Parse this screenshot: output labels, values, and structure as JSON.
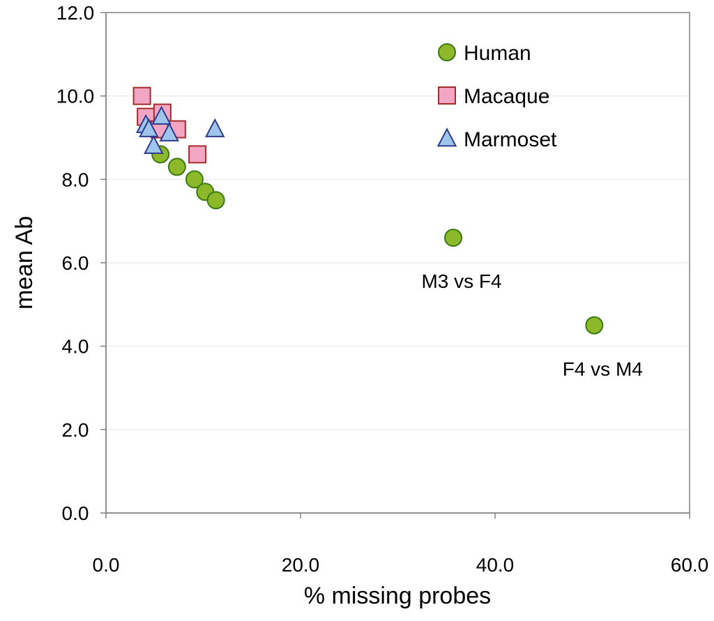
{
  "chart_data": {
    "type": "scatter",
    "title": "",
    "xlabel": "% missing probes",
    "ylabel": "mean Ab",
    "xlim": [
      0,
      60
    ],
    "ylim": [
      0,
      12
    ],
    "xticks": [
      "0.0",
      "20.0",
      "40.0",
      "60.0"
    ],
    "yticks": [
      "0.0",
      "2.0",
      "4.0",
      "6.0",
      "8.0",
      "10.0",
      "12.0"
    ],
    "grid": "horizontal",
    "legend_position": "top-right",
    "series": [
      {
        "name": "Human",
        "marker": "circle",
        "color": "#8cb82a",
        "edge": "#3a7a12",
        "points": [
          {
            "x": 5.6,
            "y": 8.6
          },
          {
            "x": 7.3,
            "y": 8.3
          },
          {
            "x": 9.1,
            "y": 8.0
          },
          {
            "x": 10.2,
            "y": 7.7
          },
          {
            "x": 11.3,
            "y": 7.5
          },
          {
            "x": 35.7,
            "y": 6.6
          },
          {
            "x": 50.2,
            "y": 4.5
          }
        ]
      },
      {
        "name": "Macaque",
        "marker": "square",
        "color": "#f3a6c4",
        "edge": "#a52a2a",
        "points": [
          {
            "x": 3.7,
            "y": 10.0
          },
          {
            "x": 4.1,
            "y": 9.5
          },
          {
            "x": 5.8,
            "y": 9.6
          },
          {
            "x": 5.5,
            "y": 9.2
          },
          {
            "x": 7.3,
            "y": 9.2
          },
          {
            "x": 9.4,
            "y": 8.6
          }
        ]
      },
      {
        "name": "Marmoset",
        "marker": "triangle",
        "color": "#9fc6ea",
        "edge": "#2e3a8c",
        "points": [
          {
            "x": 4.1,
            "y": 9.3
          },
          {
            "x": 4.4,
            "y": 9.2
          },
          {
            "x": 5.7,
            "y": 9.5
          },
          {
            "x": 6.5,
            "y": 9.1
          },
          {
            "x": 4.9,
            "y": 8.8
          },
          {
            "x": 11.2,
            "y": 9.2
          }
        ]
      }
    ],
    "annotations": [
      {
        "text": "M3 vs F4",
        "x": 35.7,
        "y": 6.6
      },
      {
        "text": "F4 vs M4",
        "x": 50.2,
        "y": 4.5
      }
    ]
  }
}
